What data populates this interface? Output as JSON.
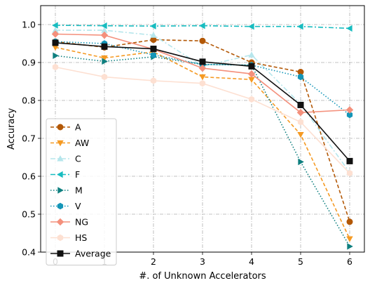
{
  "chart_data": {
    "type": "line",
    "xlabel": "#. of Unknown Accelerators",
    "ylabel": "Accuracy",
    "x": [
      0,
      1,
      2,
      3,
      4,
      5,
      6
    ],
    "xlim": [
      -0.3,
      6.3
    ],
    "ylim": [
      0.4,
      1.05
    ],
    "xticks": [
      "0",
      "1",
      "2",
      "3",
      "4",
      "5",
      "6"
    ],
    "yticks": [
      "0.4",
      "0.5",
      "0.6",
      "0.7",
      "0.8",
      "0.9",
      "1.0"
    ],
    "ytick_values": [
      0.4,
      0.5,
      0.6,
      0.7,
      0.8,
      0.9,
      1.0
    ],
    "grid": true,
    "legend_position": "lower-left",
    "series": [
      {
        "name": "A",
        "values": [
          0.955,
          0.94,
          0.96,
          0.957,
          0.9,
          0.875,
          0.48
        ],
        "color": "#b35806",
        "dash": "dashed",
        "marker": "circle"
      },
      {
        "name": "AW",
        "values": [
          0.94,
          0.912,
          0.928,
          0.862,
          0.855,
          0.71,
          0.435
        ],
        "color": "#f59a23",
        "dash": "dashed",
        "marker": "triangle-down"
      },
      {
        "name": "C",
        "values": [
          0.985,
          0.985,
          0.972,
          0.89,
          0.92,
          0.79,
          0.61
        ],
        "color": "#b6e6ec",
        "dash": "dashdot",
        "marker": "triangle-up"
      },
      {
        "name": "F",
        "values": [
          0.998,
          0.997,
          0.996,
          0.997,
          0.995,
          0.995,
          0.99
        ],
        "color": "#17bcc0",
        "dash": "dashdot",
        "marker": "triangle-left"
      },
      {
        "name": "M",
        "values": [
          0.918,
          0.903,
          0.915,
          0.895,
          0.893,
          0.638,
          0.415
        ],
        "color": "#0e7f7f",
        "dash": "dotted",
        "marker": "triangle-right"
      },
      {
        "name": "V",
        "values": [
          0.955,
          0.95,
          0.92,
          0.895,
          0.893,
          0.862,
          0.762
        ],
        "color": "#1496b8",
        "dash": "dotted",
        "marker": "hexagon"
      },
      {
        "name": "NG",
        "values": [
          0.975,
          0.972,
          0.935,
          0.885,
          0.87,
          0.768,
          0.775
        ],
        "color": "#f4907c",
        "dash": "solid",
        "marker": "diamond"
      },
      {
        "name": "HS",
        "values": [
          0.888,
          0.862,
          0.852,
          0.845,
          0.803,
          0.743,
          0.608
        ],
        "color": "#fde0d2",
        "dash": "solid",
        "marker": "hexagon"
      },
      {
        "name": "Average",
        "values": [
          0.952,
          0.942,
          0.936,
          0.902,
          0.89,
          0.788,
          0.64
        ],
        "color": "#111111",
        "dash": "solid",
        "marker": "square"
      }
    ]
  }
}
